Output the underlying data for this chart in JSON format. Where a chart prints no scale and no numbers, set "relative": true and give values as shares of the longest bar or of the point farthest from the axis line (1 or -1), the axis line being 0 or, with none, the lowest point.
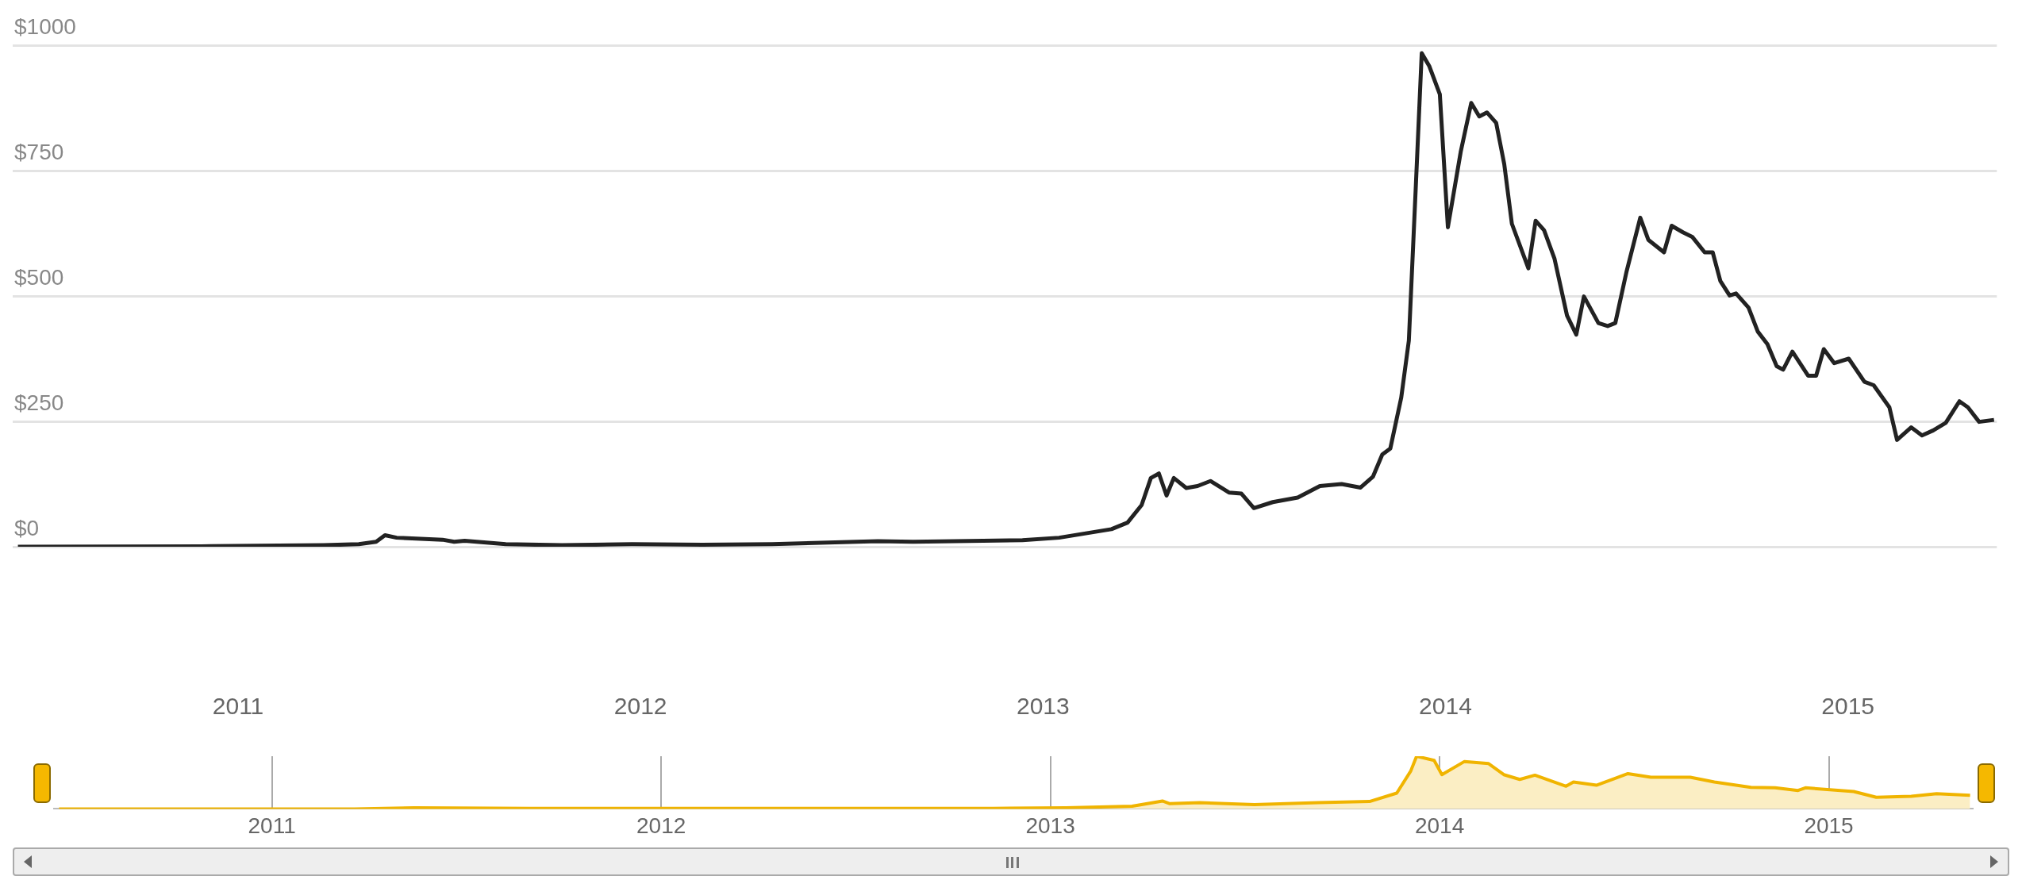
{
  "chart_data": [
    {
      "type": "line",
      "x": [
        2010.453,
        2010.933,
        2011.212,
        2011.3,
        2011.343,
        2011.365,
        2011.394,
        2011.508,
        2011.537,
        2011.563,
        2011.665,
        2011.805,
        2011.979,
        2012.154,
        2012.327,
        2012.59,
        2012.677,
        2012.851,
        2012.949,
        2013.04,
        2013.17,
        2013.21,
        2013.245,
        2013.268,
        2013.288,
        2013.307,
        2013.325,
        2013.356,
        2013.384,
        2013.416,
        2013.462,
        2013.493,
        2013.524,
        2013.571,
        2013.633,
        2013.688,
        2013.742,
        2013.789,
        2013.82,
        2013.843,
        2013.863,
        2013.89,
        2013.909,
        2013.926,
        2013.941,
        2013.96,
        2013.986,
        2014.006,
        2014.038,
        2014.064,
        2014.084,
        2014.103,
        2014.126,
        2014.146,
        2014.165,
        2014.206,
        2014.224,
        2014.245,
        2014.271,
        2014.302,
        2014.325,
        2014.344,
        2014.38,
        2014.403,
        2014.422,
        2014.45,
        2014.484,
        2014.504,
        2014.543,
        2014.562,
        2014.59,
        2014.613,
        2014.644,
        2014.664,
        2014.683,
        2014.706,
        2014.722,
        2014.753,
        2014.776,
        2014.8,
        2014.823,
        2014.839,
        2014.862,
        2014.901,
        2014.921,
        2014.94,
        2014.966,
        2015.002,
        2015.041,
        2015.064,
        2015.103,
        2015.122,
        2015.157,
        2015.184,
        2015.212,
        2015.243,
        2015.277,
        2015.298,
        2015.326,
        2015.363
      ],
      "series": [
        {
          "color": "#222222",
          "values": [
            0,
            1,
            3,
            5,
            10,
            23,
            18,
            14,
            10,
            12,
            5,
            3,
            5,
            4,
            5,
            11,
            10,
            12,
            13,
            18,
            35,
            48,
            83,
            137,
            146,
            102,
            137,
            117,
            121,
            131,
            108,
            106,
            77,
            89,
            98,
            121,
            125,
            118,
            140,
            184,
            196,
            297,
            411,
            713,
            984,
            958,
            902,
            637,
            788,
            885,
            858,
            866,
            845,
            763,
            644,
            555,
            650,
            631,
            574,
            461,
            423,
            499,
            446,
            440,
            446,
            549,
            656,
            612,
            587,
            640,
            627,
            618,
            587,
            587,
            530,
            501,
            505,
            477,
            429,
            404,
            360,
            353,
            389,
            341,
            341,
            394,
            366,
            375,
            329,
            322,
            278,
            213,
            238,
            222,
            232,
            247,
            290,
            278,
            249,
            253
          ]
        }
      ],
      "xlim": [
        2010.44,
        2015.37
      ],
      "xticks": [
        2011,
        2012,
        2013,
        2014,
        2015
      ],
      "ylim": [
        0,
        1000
      ],
      "yticks": [
        {
          "value": 0,
          "label": "$0"
        },
        {
          "value": 250,
          "label": "$250"
        },
        {
          "value": 500,
          "label": "$500"
        },
        {
          "value": 750,
          "label": "$750"
        },
        {
          "value": 1000,
          "label": "$1000"
        }
      ],
      "grid": "y",
      "marker": "none"
    },
    {
      "type": "area",
      "relative": true,
      "color": "#f0b400",
      "x": [
        2010.453,
        2011.212,
        2011.365,
        2011.665,
        2012.327,
        2012.851,
        2013.04,
        2013.21,
        2013.288,
        2013.307,
        2013.384,
        2013.524,
        2013.688,
        2013.82,
        2013.89,
        2013.926,
        2013.941,
        2013.986,
        2014.006,
        2014.064,
        2014.126,
        2014.165,
        2014.206,
        2014.245,
        2014.325,
        2014.344,
        2014.403,
        2014.484,
        2014.543,
        2014.644,
        2014.706,
        2014.8,
        2014.862,
        2014.921,
        2014.94,
        2015.064,
        2015.122,
        2015.212,
        2015.277,
        2015.363
      ],
      "values": [
        0,
        0,
        0.02,
        0.01,
        0.01,
        0.01,
        0.02,
        0.05,
        0.15,
        0.1,
        0.12,
        0.08,
        0.12,
        0.14,
        0.3,
        0.72,
        1,
        0.92,
        0.65,
        0.9,
        0.86,
        0.65,
        0.56,
        0.64,
        0.43,
        0.51,
        0.45,
        0.67,
        0.6,
        0.6,
        0.51,
        0.41,
        0.4,
        0.35,
        0.4,
        0.33,
        0.22,
        0.24,
        0.29,
        0.26
      ],
      "xlim": [
        2010.44,
        2015.37
      ],
      "xticks": [
        2011,
        2012,
        2013,
        2014,
        2015
      ],
      "grid": "x",
      "tick_labels": "x"
    }
  ]
}
